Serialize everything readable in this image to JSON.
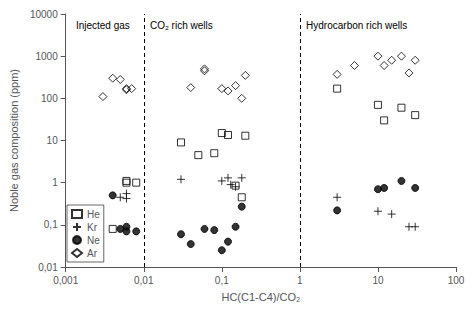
{
  "chart_data": {
    "type": "scatter",
    "xlabel": "HC(C1-C4)/CO₂",
    "ylabel": "Noble gas composition (ppm)",
    "log": true,
    "grid": false,
    "legend": "lower left",
    "xlim": [
      0.001,
      100
    ],
    "ylim": [
      0.01,
      10000
    ],
    "xticks": [
      {
        "value": 0.001,
        "label": "0,001"
      },
      {
        "value": 0.01,
        "label": "0,01"
      },
      {
        "value": 0.1,
        "label": "0,1"
      },
      1,
      10,
      100
    ],
    "yticks": [
      {
        "value": 0.01,
        "label": "0,01"
      },
      {
        "value": 0.1,
        "label": "0,1"
      },
      1,
      10,
      100,
      1000,
      10000
    ],
    "vlines": [
      0.01,
      1.0
    ],
    "annotations": [
      {
        "text": "Injected gas",
        "x": 0.00135,
        "y": 7000
      },
      {
        "text": "CO₂ rich wells",
        "x": 0.012,
        "y": 7000
      },
      {
        "text": "Hydrocarbon rich wells",
        "x": 1.2,
        "y": 7000
      }
    ],
    "series": [
      {
        "name": "He",
        "color": "black",
        "marker": "open_square",
        "x": [
          0.004,
          0.006,
          0.006,
          0.008,
          0.03,
          0.05,
          0.08,
          0.1,
          0.12,
          0.15,
          0.18,
          0.2,
          3,
          10,
          12,
          20,
          30
        ],
        "values": [
          0.08,
          1.1,
          1.0,
          1.0,
          9.0,
          4.5,
          5.0,
          15.0,
          13.5,
          0.85,
          0.45,
          13.0,
          170,
          70,
          30,
          60,
          40
        ]
      },
      {
        "name": "Kr",
        "color": "black",
        "marker": "plus",
        "x": [
          0.005,
          0.006,
          0.006,
          0.03,
          0.1,
          0.12,
          0.13,
          0.15,
          0.18,
          3,
          10,
          15,
          25,
          30
        ],
        "values": [
          0.45,
          0.55,
          0.42,
          1.2,
          1.1,
          1.3,
          0.9,
          0.8,
          1.3,
          0.45,
          0.21,
          0.18,
          0.09,
          0.09
        ]
      },
      {
        "name": "Ne",
        "color": "black",
        "marker": "circle",
        "x": [
          0.004,
          0.005,
          0.006,
          0.006,
          0.008,
          0.03,
          0.04,
          0.06,
          0.08,
          0.1,
          0.12,
          0.15,
          0.18,
          3,
          10,
          12,
          20,
          30
        ],
        "values": [
          0.5,
          0.08,
          0.09,
          0.07,
          0.07,
          0.06,
          0.035,
          0.08,
          0.075,
          0.025,
          0.04,
          0.09,
          0.27,
          0.22,
          0.7,
          0.75,
          1.1,
          0.75
        ]
      },
      {
        "name": "Ar",
        "color": "black",
        "marker": "open_diamond",
        "x": [
          0.003,
          0.004,
          0.005,
          0.006,
          0.006,
          0.007,
          0.04,
          0.06,
          0.06,
          0.1,
          0.12,
          0.15,
          0.18,
          0.2,
          3,
          5,
          10,
          12,
          15,
          20,
          25,
          30
        ],
        "values": [
          110,
          300,
          280,
          170,
          160,
          170,
          180,
          450,
          500,
          170,
          150,
          200,
          100,
          350,
          370,
          600,
          1000,
          600,
          800,
          1000,
          400,
          800
        ]
      }
    ]
  }
}
